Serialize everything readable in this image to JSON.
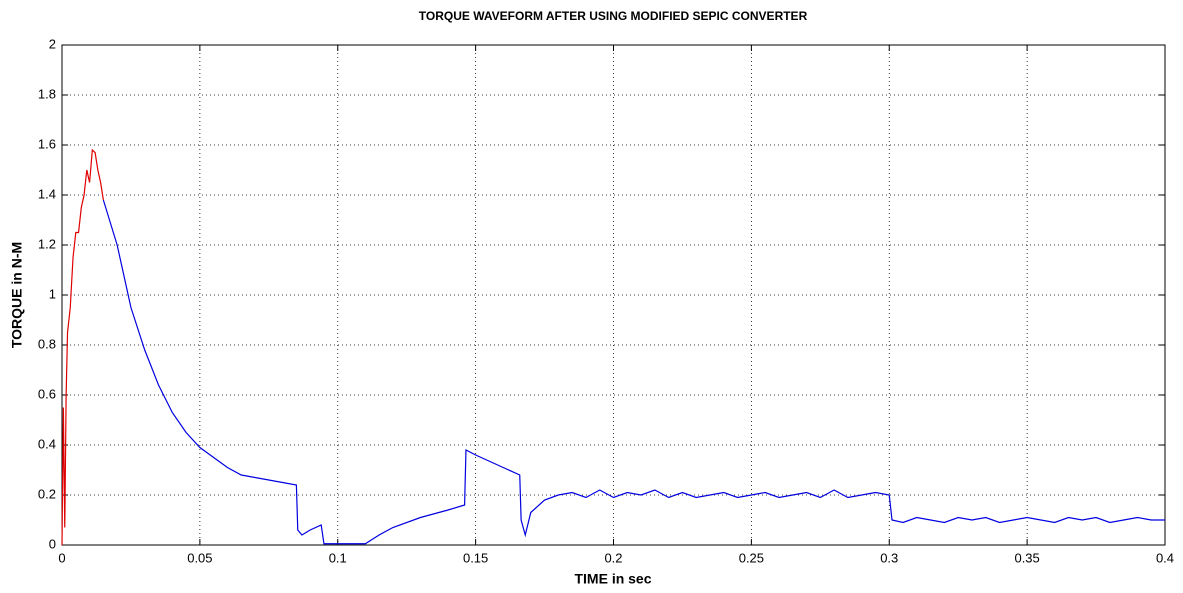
{
  "chart_data": {
    "type": "line",
    "title": "TORQUE WAVEFORM AFTER USING MODIFIED SEPIC CONVERTER",
    "xlabel": "TIME in sec",
    "ylabel": "TORQUE in N-M",
    "xlim": [
      0,
      0.4
    ],
    "xticks": [
      0,
      0.05,
      0.1,
      0.15,
      0.2,
      0.25,
      0.3,
      0.35,
      0.4
    ],
    "ylim": [
      0,
      2
    ],
    "yticks": [
      0,
      0.2,
      0.4,
      0.6,
      0.8,
      1,
      1.2,
      1.4,
      1.6,
      1.8,
      2
    ],
    "grid": true,
    "series": [
      {
        "color": "#e00000",
        "x": [
          0,
          0.0005,
          0.001,
          0.0015,
          0.002,
          0.003,
          0.004,
          0.005,
          0.006,
          0.007,
          0.008,
          0.009,
          0.01,
          0.011,
          0.012,
          0.013,
          0.014,
          0.015
        ],
        "values": [
          0,
          0.55,
          0.07,
          0.6,
          0.85,
          0.95,
          1.15,
          1.25,
          1.25,
          1.35,
          1.4,
          1.5,
          1.45,
          1.58,
          1.57,
          1.5,
          1.45,
          1.38
        ]
      },
      {
        "color": "#0000e0",
        "x": [
          0.015,
          0.02,
          0.025,
          0.03,
          0.035,
          0.04,
          0.045,
          0.05,
          0.055,
          0.06,
          0.065,
          0.07,
          0.075,
          0.08,
          0.085,
          0.0855,
          0.087,
          0.09,
          0.094,
          0.095,
          0.1,
          0.11,
          0.115,
          0.12,
          0.13,
          0.14,
          0.146,
          0.1465,
          0.15,
          0.16,
          0.166,
          0.1665,
          0.168,
          0.17,
          0.175,
          0.18,
          0.185,
          0.19,
          0.195,
          0.2,
          0.205,
          0.21,
          0.215,
          0.22,
          0.225,
          0.23,
          0.235,
          0.24,
          0.245,
          0.25,
          0.255,
          0.26,
          0.265,
          0.27,
          0.275,
          0.28,
          0.285,
          0.29,
          0.295,
          0.3,
          0.301,
          0.305,
          0.31,
          0.315,
          0.32,
          0.325,
          0.33,
          0.335,
          0.34,
          0.345,
          0.35,
          0.355,
          0.36,
          0.365,
          0.37,
          0.375,
          0.38,
          0.385,
          0.39,
          0.395,
          0.4
        ],
        "values": [
          1.38,
          1.2,
          0.95,
          0.78,
          0.64,
          0.53,
          0.45,
          0.39,
          0.35,
          0.31,
          0.28,
          0.27,
          0.26,
          0.25,
          0.24,
          0.06,
          0.04,
          0.06,
          0.08,
          0.005,
          0.005,
          0.005,
          0.04,
          0.07,
          0.11,
          0.14,
          0.16,
          0.38,
          0.36,
          0.31,
          0.28,
          0.1,
          0.04,
          0.13,
          0.18,
          0.2,
          0.21,
          0.19,
          0.22,
          0.19,
          0.21,
          0.2,
          0.22,
          0.19,
          0.21,
          0.19,
          0.2,
          0.21,
          0.19,
          0.2,
          0.21,
          0.19,
          0.2,
          0.21,
          0.19,
          0.22,
          0.19,
          0.2,
          0.21,
          0.2,
          0.1,
          0.09,
          0.11,
          0.1,
          0.09,
          0.11,
          0.1,
          0.11,
          0.09,
          0.1,
          0.11,
          0.1,
          0.09,
          0.11,
          0.1,
          0.11,
          0.09,
          0.1,
          0.11,
          0.1,
          0.1
        ]
      }
    ]
  }
}
